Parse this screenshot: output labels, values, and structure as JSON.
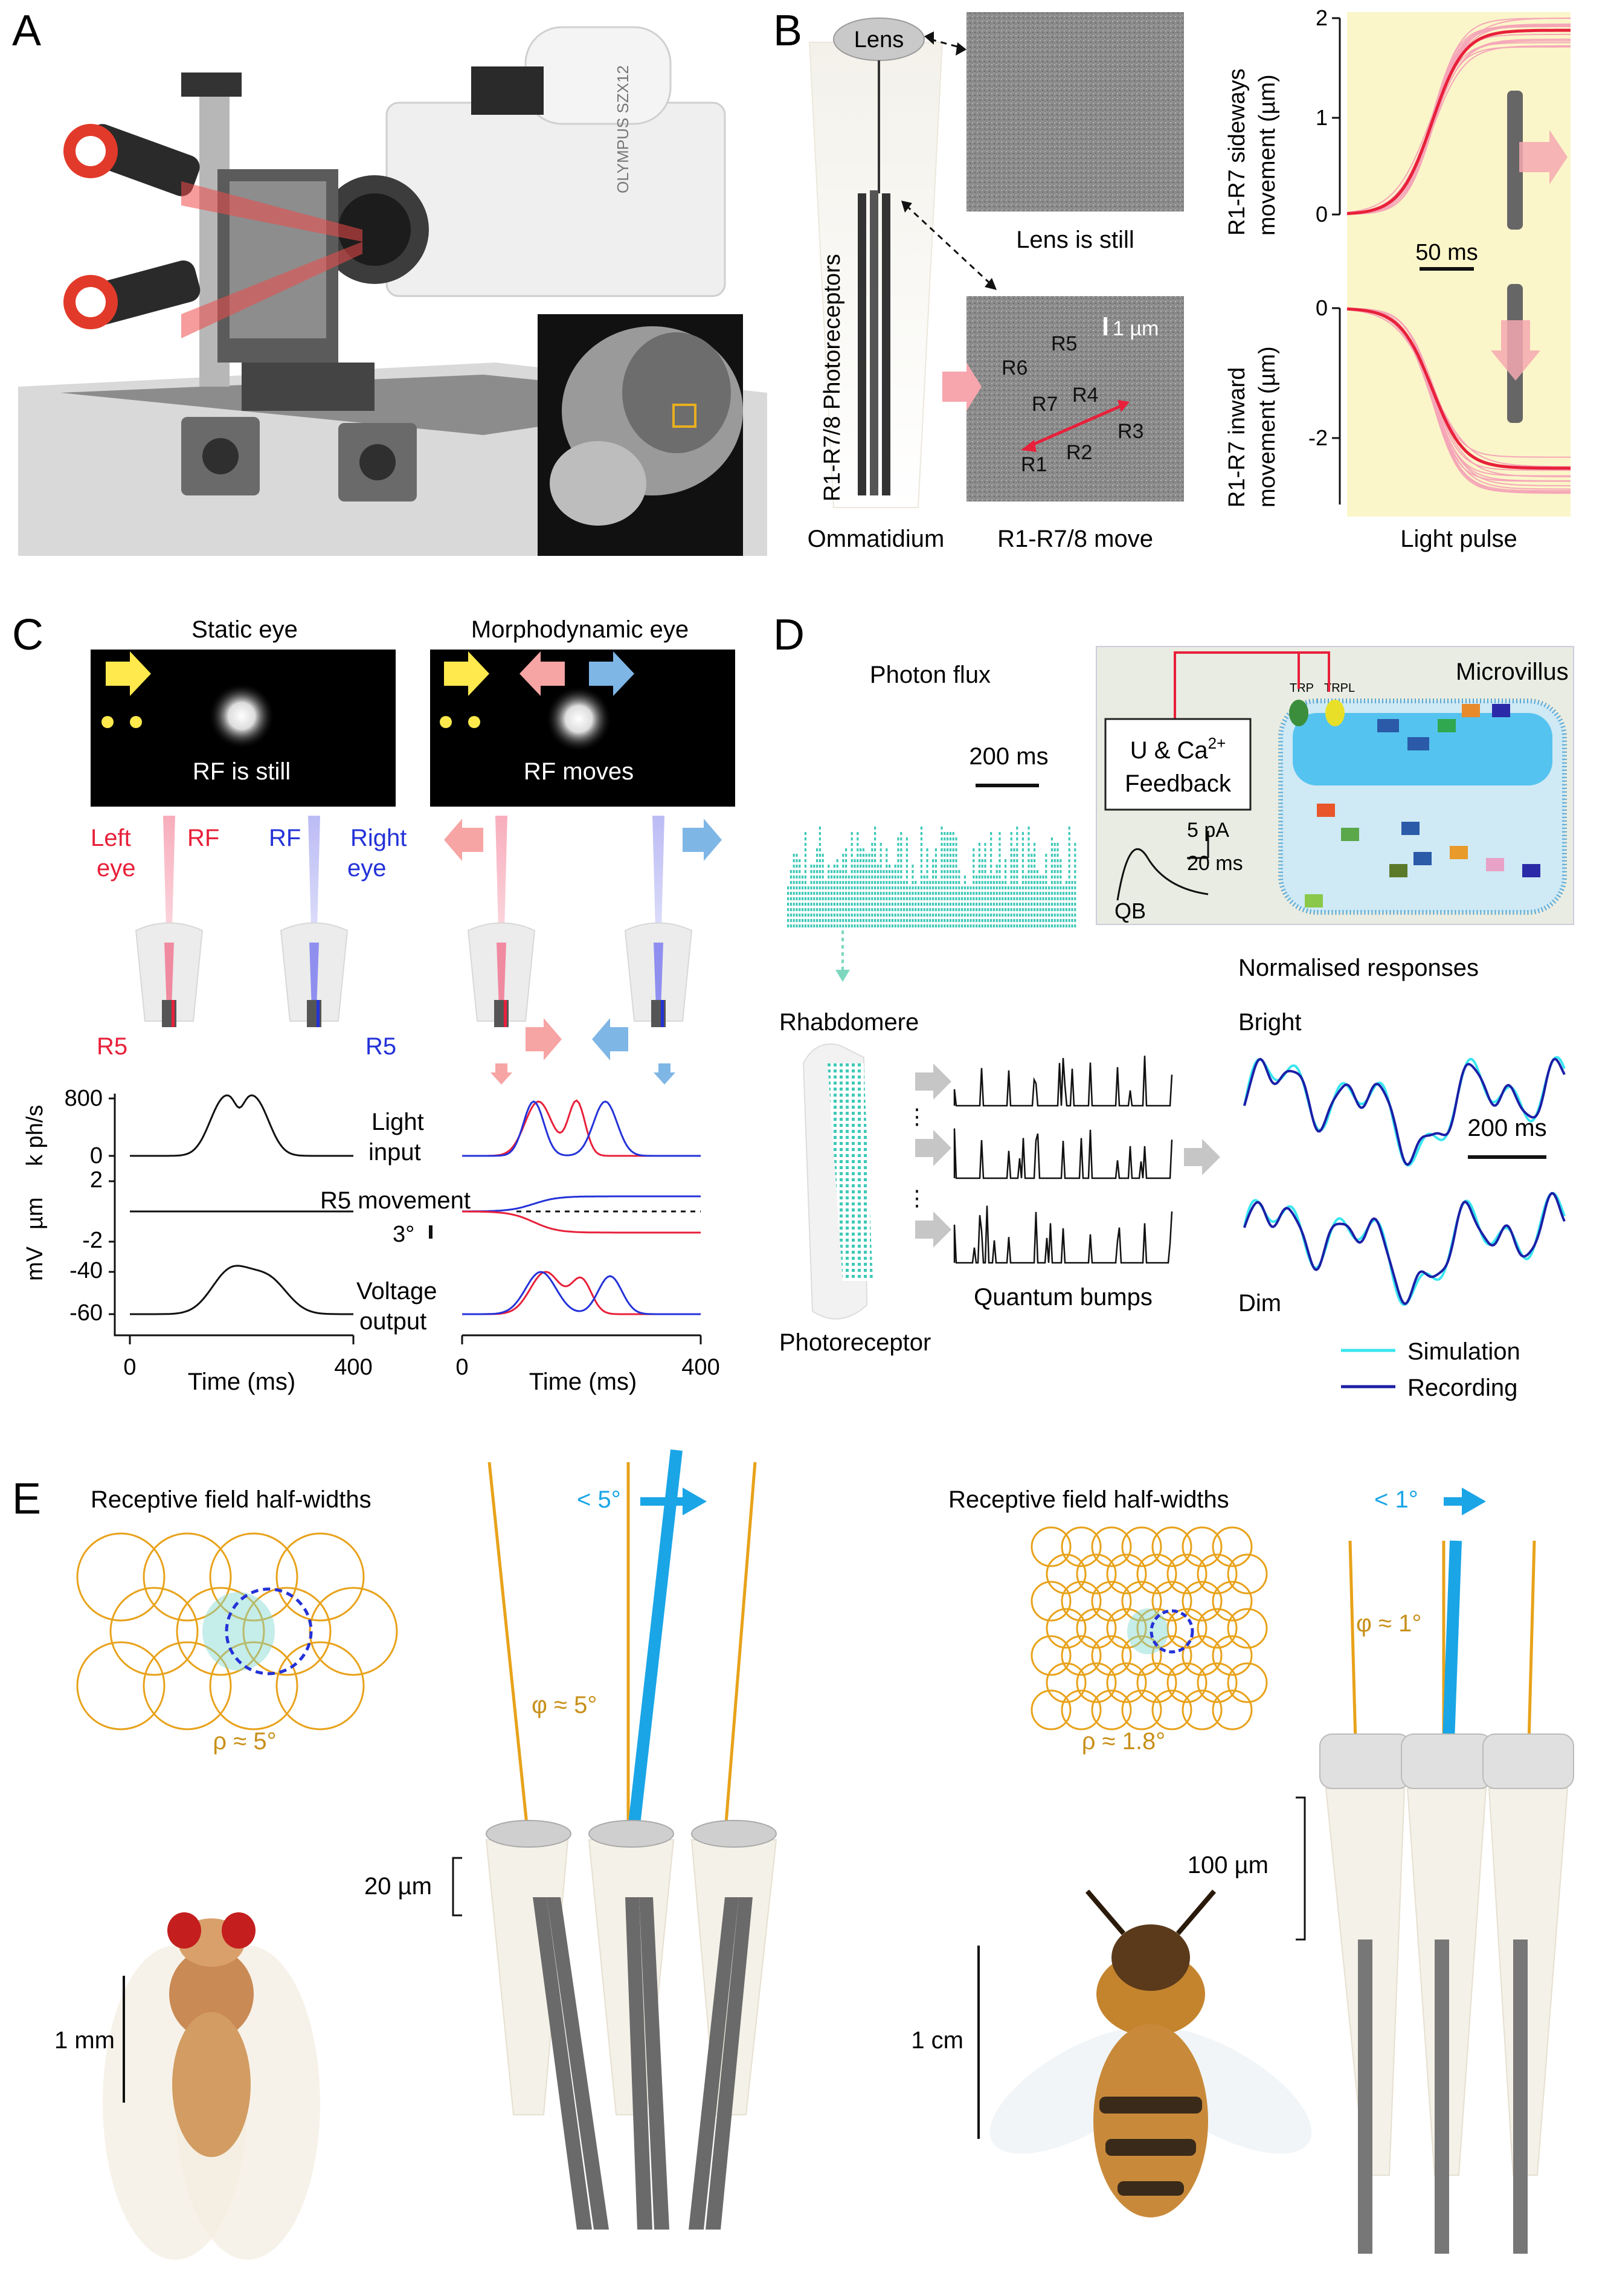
{
  "panels": {
    "A": {
      "letter": "A",
      "inset_label": "OLYMPUS SZX12"
    },
    "B": {
      "letter": "B",
      "lens": "Lens",
      "lens_still": "Lens is still",
      "photoreceptors": "R1-R7/8 Photoreceptors",
      "ommatidium": "Ommatidium",
      "move": "R1-R7/8 move",
      "scale": "1 µm",
      "cells": [
        "R1",
        "R2",
        "R3",
        "R4",
        "R5",
        "R6",
        "R7"
      ],
      "sideways_axis_top": "R1-R7 sideways",
      "sideways_axis_bottom": "movement (µm)",
      "inward_axis_top": "R1-R7 inward",
      "inward_axis_bottom": "movement (µm)",
      "ticks_top": [
        "2",
        "1",
        "0"
      ],
      "ticks_bottom": [
        "0",
        "-2"
      ],
      "time_scale": "50 ms",
      "light_pulse": "Light pulse",
      "colors": {
        "trace": "#e8203a",
        "bg": "#fbf6c9",
        "faint": "#f5a6b8"
      }
    },
    "C": {
      "letter": "C",
      "static_eye": "Static eye",
      "morpho_eye": "Morphodynamic eye",
      "rf_still": "RF is still",
      "rf_moves": "RF moves",
      "left_eye_1": "Left",
      "left_eye_2": "eye",
      "rf_red": "RF",
      "rf_blue": "RF",
      "right_eye_1": "Right",
      "right_eye_2": "eye",
      "r5_red": "R5",
      "r5_blue": "R5",
      "y1_label": "k ph/s",
      "y1_ticks": [
        "800",
        "0"
      ],
      "light_input_1": "Light",
      "light_input_2": "input",
      "y2_label": "µm",
      "y2_ticks": [
        "2",
        "-2"
      ],
      "r5_movement": "R5 movement",
      "deg": "3°",
      "y3_label": "mV",
      "y3_ticks": [
        "-40",
        "-60"
      ],
      "voltage_1": "Voltage",
      "voltage_2": "output",
      "x_ticks": [
        "0",
        "400"
      ],
      "x_label": "Time (ms)",
      "colors": {
        "red": "#e8203a",
        "blue": "#2432d8",
        "pink": "#f7a4a4",
        "lightblue": "#7eb6e6"
      }
    },
    "D": {
      "letter": "D",
      "photon_flux": "Photon flux",
      "scale_200": "200 ms",
      "feedback_1": "U & Ca",
      "feedback_sup": "2+",
      "feedback_2": "Feedback",
      "microvillus": "Microvillus",
      "trp": "TRP",
      "trpl": "TRPL",
      "pa_scale": "5 pA",
      "ms_scale": "20 ms",
      "qb": "QB",
      "rhabdomere": "Rhabdomere",
      "photoreceptor": "Photoreceptor",
      "quantum_bumps": "Quantum bumps",
      "normalised": "Normalised responses",
      "bright": "Bright",
      "dim": "Dim",
      "scale_200b": "200 ms",
      "legend_sim": "Simulation",
      "legend_rec": "Recording",
      "colors": {
        "teal": "#3fc9b7",
        "sim": "#39e6f0",
        "rec": "#1b1fa6"
      }
    },
    "E": {
      "letter": "E",
      "rf_halfwidths_left": "Receptive field half-widths",
      "rf_halfwidths_right": "Receptive field half-widths",
      "rho_fly": "ρ ≈ 5°",
      "rho_bee": "ρ ≈ 1.8°",
      "phi_fly": "φ ≈ 5°",
      "phi_bee": "φ ≈ 1°",
      "move_fly": "< 5°",
      "move_bee": "< 1°",
      "scale_20um": "20 µm",
      "scale_100um": "100 µm",
      "scale_1mm": "1 mm",
      "scale_1cm": "1 cm",
      "colors": {
        "orange": "#e8a21a",
        "blue": "#1aa5e6"
      }
    }
  }
}
